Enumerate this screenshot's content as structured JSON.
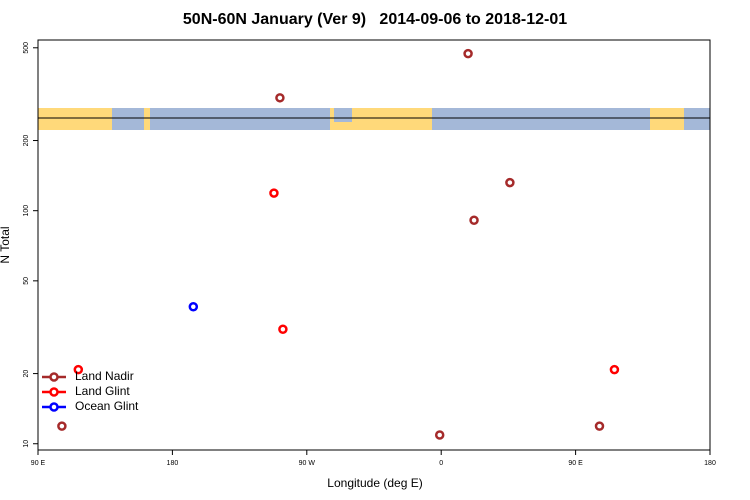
{
  "chart_data": {
    "type": "scatter",
    "title": "50N-60N January (Ver 9)   2014-09-06 to 2018-12-01",
    "xlabel": "Longitude (deg E)",
    "ylabel": "N Total",
    "xlim": [
      -270,
      180
    ],
    "xticks": [
      {
        "value": -270,
        "label": "90 E"
      },
      {
        "value": -180,
        "label": "180"
      },
      {
        "value": -90,
        "label": "90 W"
      },
      0,
      {
        "value": 90,
        "label": "90 E"
      },
      180
    ],
    "ylim": [
      9.4,
      540
    ],
    "yticks": [
      10,
      20,
      50,
      100,
      200,
      500
    ],
    "log_scale": "y",
    "legend": "lower left",
    "series": [
      {
        "name": "Land Nadir",
        "color": "#a52a2a",
        "x": [
          18,
          -108,
          46,
          22,
          -254,
          -1,
          106
        ],
        "values": [
          472,
          305,
          132,
          91,
          11.9,
          10.9,
          11.9
        ]
      },
      {
        "name": "Land Glint",
        "color": "#ff0000",
        "x": [
          -112,
          -106,
          -243,
          116
        ],
        "values": [
          119,
          31,
          20.8,
          20.8
        ]
      },
      {
        "name": "Ocean Glint",
        "color": "#0000ff",
        "x": [
          -166
        ],
        "values": [
          38.7
        ]
      }
    ]
  }
}
